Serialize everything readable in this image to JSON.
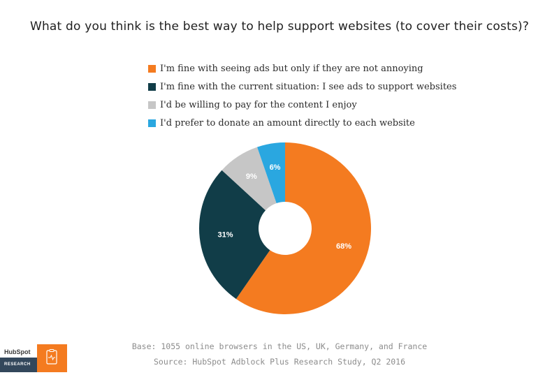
{
  "header": {
    "title": "What do you think is the best way to help support websites (to cover their costs)?"
  },
  "chart_data": {
    "type": "pie",
    "donut": true,
    "title": "What do you think is the best way to help support websites (to cover their costs)?",
    "legend_position": "top",
    "series": [
      {
        "name": "I'm fine with seeing ads but only if they are not annoying",
        "value": 68,
        "label": "68%",
        "color": "#f47b20",
        "label_color": "#ffffff"
      },
      {
        "name": "I'm fine with the current situation: I see ads to support websites",
        "value": 31,
        "label": "31%",
        "color": "#113d48",
        "label_color": "#ffffff"
      },
      {
        "name": "I'd be willing to pay for the content I enjoy",
        "value": 9,
        "label": "9%",
        "color": "#c6c6c6",
        "label_color": "#ffffff"
      },
      {
        "name": "I'd prefer to donate an amount directly to each website",
        "value": 6,
        "label": "6%",
        "color": "#2aa7e0",
        "label_color": "#ffffff"
      }
    ]
  },
  "footer": {
    "base": "Base: 1055 online browsers in the US, UK, Germany, and France",
    "source": "Source: HubSpot Adblock Plus Research Study, Q2 2016"
  },
  "logo": {
    "brand": "HubSpot",
    "research": "RESEARCH",
    "bg_color": "#33475b",
    "accent_color": "#f47b20",
    "icon": "clipboard-pulse-icon"
  }
}
